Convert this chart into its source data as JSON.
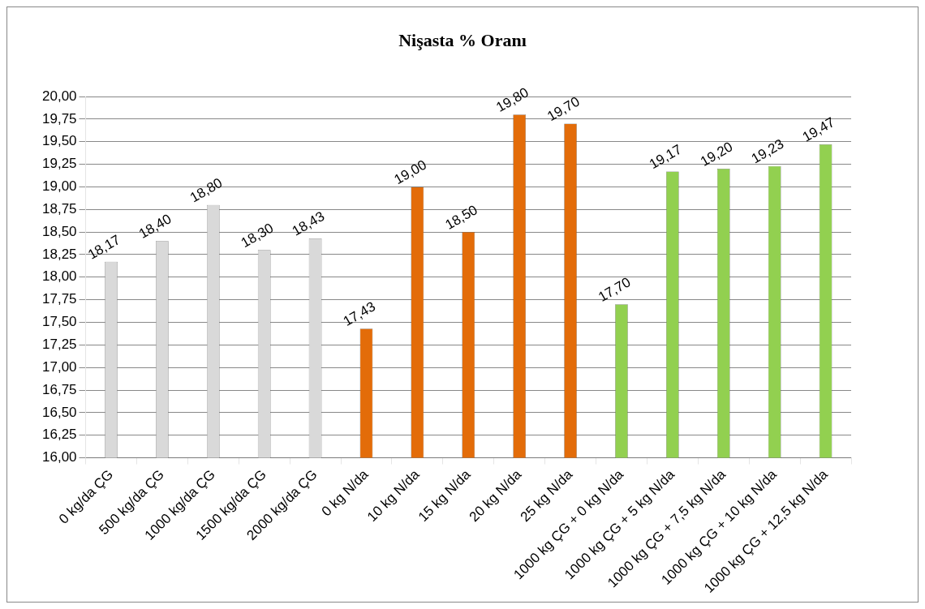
{
  "chart_data": {
    "type": "bar",
    "title": "Nişasta % Oranı",
    "categories": [
      "0 kg/da ÇG",
      "500 kg/da ÇG",
      "1000 kg/da ÇG",
      "1500 kg/da ÇG",
      "2000 kg/da ÇG",
      "0 kg N/da",
      "10 kg N/da",
      "15 kg N/da",
      "20 kg N/da",
      "25 kg N/da",
      "1000 kg ÇG + 0 kg N/da",
      "1000 kg ÇG + 5 kg N/da",
      "1000 kg ÇG + 7,5 kg N/da",
      "1000 kg ÇG + 10 kg N/da",
      "1000 kg ÇG + 12,5 kg N/da"
    ],
    "values": [
      18.17,
      18.4,
      18.8,
      18.3,
      18.43,
      17.43,
      19.0,
      18.5,
      19.8,
      19.7,
      17.7,
      19.17,
      19.2,
      19.23,
      19.47
    ],
    "value_labels": [
      "18,17",
      "18,40",
      "18,80",
      "18,30",
      "18,43",
      "17,43",
      "19,00",
      "18,50",
      "19,80",
      "19,70",
      "17,70",
      "19,17",
      "19,20",
      "19,23",
      "19,47"
    ],
    "colors": [
      "#d9d9d9",
      "#d9d9d9",
      "#d9d9d9",
      "#d9d9d9",
      "#d9d9d9",
      "#e36c09",
      "#e36c09",
      "#e36c09",
      "#e36c09",
      "#e36c09",
      "#92d050",
      "#92d050",
      "#92d050",
      "#92d050",
      "#92d050"
    ],
    "ylim": [
      16,
      20
    ],
    "yticks": [
      {
        "value": 16,
        "label": "16,00"
      },
      {
        "value": 16.25,
        "label": "16,25"
      },
      {
        "value": 16.5,
        "label": "16,50"
      },
      {
        "value": 16.75,
        "label": "16,75"
      },
      {
        "value": 17,
        "label": "17,00"
      },
      {
        "value": 17.25,
        "label": "17,25"
      },
      {
        "value": 17.5,
        "label": "17,50"
      },
      {
        "value": 17.75,
        "label": "17,75"
      },
      {
        "value": 18,
        "label": "18,00"
      },
      {
        "value": 18.25,
        "label": "18,25"
      },
      {
        "value": 18.5,
        "label": "18,50"
      },
      {
        "value": 18.75,
        "label": "18,75"
      },
      {
        "value": 19,
        "label": "19,00"
      },
      {
        "value": 19.25,
        "label": "19,25"
      },
      {
        "value": 19.5,
        "label": "19,50"
      },
      {
        "value": 19.75,
        "label": "19,75"
      },
      {
        "value": 20,
        "label": "20,00"
      }
    ],
    "grid": true,
    "legend": false
  }
}
